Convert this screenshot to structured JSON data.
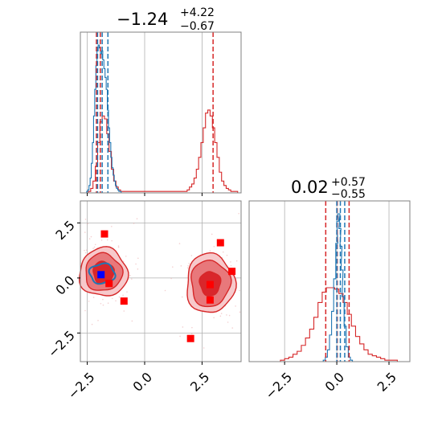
{
  "colors": {
    "red": "#d62728",
    "red_fill_dark": "#d9262b",
    "red_fill_mid": "#e8787b",
    "red_fill_light": "#f7c9cb",
    "blue": "#1f77b4",
    "blue_marker": "#0000ff",
    "marker_red": "#ff0000",
    "grid": "#b0b0b0",
    "axes": "#808080"
  },
  "chart_data": [
    {
      "panel": "marginal-x",
      "type": "histogram",
      "title_value": "−1.24",
      "title_plus": "+4.22",
      "title_minus": "−0.67",
      "xlim": [
        -2.8,
        4.2
      ],
      "x_ticks": [
        -2.5,
        0.0,
        2.5
      ],
      "grid": true,
      "series": [
        {
          "color": "red",
          "x": [
            -2.4,
            -2.3,
            -2.2,
            -2.1,
            -2.0,
            -1.9,
            -1.8,
            -1.7,
            -1.6,
            -1.5,
            -1.4,
            -1.3,
            -1.2,
            -1.1,
            -1.0,
            1.8,
            1.9,
            2.0,
            2.1,
            2.2,
            2.3,
            2.4,
            2.5,
            2.6,
            2.7,
            2.8,
            2.9,
            3.0,
            3.1,
            3.2,
            3.3,
            3.4,
            3.5,
            3.6,
            3.7,
            3.8,
            3.9,
            4.0
          ],
          "values": [
            0.01,
            0.03,
            0.08,
            0.18,
            0.34,
            0.48,
            0.52,
            0.5,
            0.4,
            0.28,
            0.16,
            0.08,
            0.04,
            0.02,
            0.01,
            0.01,
            0.02,
            0.04,
            0.06,
            0.1,
            0.16,
            0.24,
            0.34,
            0.44,
            0.54,
            0.56,
            0.52,
            0.44,
            0.34,
            0.24,
            0.14,
            0.08,
            0.05,
            0.03,
            0.02,
            0.01,
            0.01,
            0.01
          ]
        },
        {
          "color": "blue",
          "x": [
            -2.5,
            -2.45,
            -2.4,
            -2.35,
            -2.3,
            -2.25,
            -2.2,
            -2.15,
            -2.1,
            -2.05,
            -2.0,
            -1.95,
            -1.9,
            -1.85,
            -1.8,
            -1.75,
            -1.7,
            -1.65,
            -1.6,
            -1.55,
            -1.5,
            -1.45,
            -1.4,
            -1.35,
            -1.3,
            -1.25,
            -1.2,
            -1.15,
            -1.1,
            -1.05,
            -1.0
          ],
          "values": [
            0.01,
            0.02,
            0.05,
            0.1,
            0.2,
            0.34,
            0.52,
            0.7,
            0.86,
            0.96,
            1.0,
            0.98,
            0.94,
            0.96,
            0.9,
            0.84,
            0.78,
            0.7,
            0.56,
            0.44,
            0.34,
            0.24,
            0.17,
            0.12,
            0.08,
            0.05,
            0.03,
            0.02,
            0.01,
            0.01,
            0.0
          ]
        }
      ],
      "red_quantiles": [
        -2.1,
        -1.93,
        2.98
      ],
      "blue_quantiles": [
        -2.05,
        -1.85,
        -1.6
      ]
    },
    {
      "panel": "marginal-y",
      "type": "histogram",
      "title_value": "0.02",
      "title_plus": "+0.57",
      "title_minus": "−0.55",
      "xlim": [
        -4.2,
        3.5
      ],
      "x_ticks": [
        -2.5,
        0.0,
        2.5
      ],
      "grid": true,
      "series": [
        {
          "color": "red",
          "x": [
            -2.6,
            -2.4,
            -2.2,
            -2.0,
            -1.8,
            -1.6,
            -1.4,
            -1.2,
            -1.0,
            -0.8,
            -0.6,
            -0.4,
            -0.2,
            0.0,
            0.2,
            0.4,
            0.6,
            0.8,
            1.0,
            1.2,
            1.4,
            1.6,
            1.8,
            2.0,
            2.2,
            2.4,
            2.6,
            2.8
          ],
          "values": [
            0.01,
            0.02,
            0.03,
            0.05,
            0.07,
            0.11,
            0.16,
            0.22,
            0.3,
            0.4,
            0.47,
            0.5,
            0.5,
            0.49,
            0.46,
            0.4,
            0.32,
            0.24,
            0.17,
            0.12,
            0.08,
            0.05,
            0.04,
            0.03,
            0.02,
            0.01,
            0.01,
            0.01
          ]
        },
        {
          "color": "blue",
          "x": [
            -0.6,
            -0.5,
            -0.4,
            -0.3,
            -0.2,
            -0.1,
            0.0,
            0.05,
            0.1,
            0.15,
            0.2,
            0.25,
            0.3,
            0.4,
            0.5,
            0.6,
            0.7
          ],
          "values": [
            0.01,
            0.03,
            0.08,
            0.18,
            0.34,
            0.56,
            0.8,
            0.95,
            1.0,
            0.9,
            0.78,
            0.62,
            0.44,
            0.24,
            0.1,
            0.03,
            0.01
          ]
        }
      ],
      "red_quantiles": [
        -0.53,
        0.02,
        0.59
      ],
      "blue_quantiles": [
        0.0,
        0.17,
        0.38
      ]
    },
    {
      "panel": "joint",
      "type": "contour",
      "xlim": [
        -2.8,
        4.2
      ],
      "ylim": [
        -3.8,
        3.5
      ],
      "x_ticks": [
        -2.5,
        0.0,
        2.5
      ],
      "y_ticks": [
        -2.5,
        0.0,
        2.5
      ],
      "x_tick_labels": [
        "−2.5",
        "0.0",
        "2.5"
      ],
      "y_tick_labels": [
        "−2.5",
        "0.0",
        "2.5"
      ],
      "grid": true,
      "red_blobs": [
        {
          "center": [
            -1.8,
            0.25
          ],
          "radius_x_levels": [
            1.05,
            0.8,
            0.45
          ],
          "radius_y_levels": [
            1.1,
            0.85,
            0.5
          ]
        },
        {
          "center": [
            2.85,
            -0.25
          ],
          "radius_x_levels": [
            1.05,
            0.85,
            0.45
          ],
          "radius_y_levels": [
            1.35,
            1.05,
            0.55
          ]
        }
      ],
      "blue_blob": {
        "center": [
          -1.85,
          0.2
        ],
        "radius_x": 0.55,
        "radius_y": 0.45
      },
      "red_points": [
        [
          -1.75,
          2.0
        ],
        [
          -0.9,
          -1.05
        ],
        [
          -1.55,
          -0.25
        ],
        [
          2.0,
          -2.75
        ],
        [
          3.3,
          1.6
        ],
        [
          3.8,
          0.3
        ],
        [
          2.85,
          -1.0
        ],
        [
          2.85,
          -0.3
        ]
      ],
      "blue_points": [
        [
          -1.9,
          0.15
        ]
      ]
    }
  ],
  "tick_labels": {
    "minus_2_5": "−2.5",
    "zero": "0.0",
    "plus_2_5": "2.5"
  }
}
